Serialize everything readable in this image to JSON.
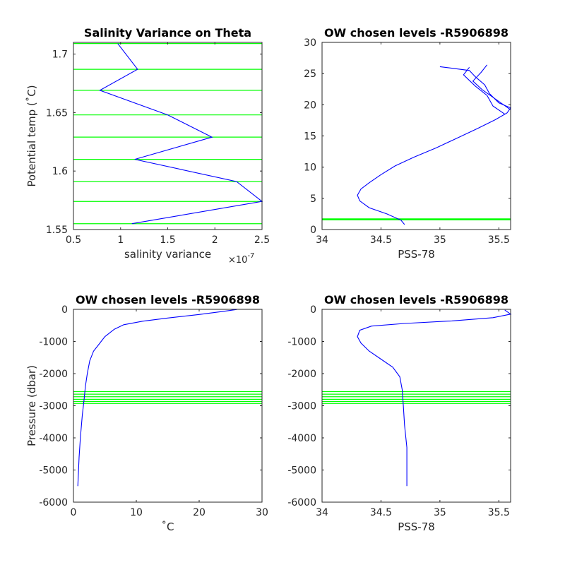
{
  "chart_data": [
    {
      "type": "line",
      "title": "Salinity Variance on Theta",
      "xlabel": "salinity variance",
      "x_exponent": "-7",
      "ylabel": "Potential temp (˚C)",
      "xlim": [
        0.5,
        2.5
      ],
      "ylim": [
        1.55,
        1.71
      ],
      "xticks": [
        0.5,
        1,
        1.5,
        2,
        2.5
      ],
      "xtick_labels": [
        "0.5",
        "1",
        "1.5",
        "2",
        "2.5"
      ],
      "yticks": [
        1.55,
        1.6,
        1.65,
        1.7
      ],
      "ytick_labels": [
        "1.55",
        "1.6",
        "1.65",
        "1.7"
      ],
      "grid": false,
      "series": [
        {
          "color": "#0000ff",
          "points": [
            [
              0.97,
              1.709
            ],
            [
              1.18,
              1.687
            ],
            [
              0.78,
              1.669
            ],
            [
              1.5,
              1.648
            ],
            [
              1.97,
              1.629
            ],
            [
              1.15,
              1.61
            ],
            [
              2.23,
              1.591
            ],
            [
              2.5,
              1.574
            ],
            [
              1.12,
              1.555
            ]
          ]
        }
      ],
      "levels": [
        1.709,
        1.687,
        1.669,
        1.648,
        1.629,
        1.61,
        1.591,
        1.574,
        1.555
      ],
      "levels_color": "#00ff00"
    },
    {
      "type": "line",
      "title": "OW chosen levels -R5906898",
      "xlabel": "PSS-78",
      "ylabel": "",
      "xlim": [
        34,
        35.6
      ],
      "ylim": [
        0,
        30
      ],
      "xticks": [
        34,
        34.5,
        35,
        35.5
      ],
      "xtick_labels": [
        "34",
        "34.5",
        "35",
        "35.5"
      ],
      "yticks": [
        0,
        5,
        10,
        15,
        20,
        25,
        30
      ],
      "ytick_labels": [
        "0",
        "5",
        "10",
        "15",
        "20",
        "25",
        "30"
      ],
      "grid": false,
      "series": [
        {
          "color": "#0000ff",
          "points": [
            [
              34.7,
              0.8
            ],
            [
              34.67,
              1.5
            ],
            [
              34.55,
              2.5
            ],
            [
              34.4,
              3.5
            ],
            [
              34.32,
              4.6
            ],
            [
              34.3,
              5.5
            ],
            [
              34.33,
              6.5
            ],
            [
              34.4,
              7.5
            ],
            [
              34.5,
              8.8
            ],
            [
              34.62,
              10.2
            ],
            [
              34.78,
              11.6
            ],
            [
              34.97,
              13.1
            ],
            [
              35.15,
              14.7
            ],
            [
              35.32,
              16.2
            ],
            [
              35.47,
              17.6
            ],
            [
              35.57,
              18.7
            ],
            [
              35.6,
              19.5
            ],
            [
              35.5,
              20.3
            ],
            [
              35.42,
              21.8
            ],
            [
              35.38,
              23.2
            ],
            [
              35.3,
              24.5
            ],
            [
              35.25,
              25.5
            ],
            [
              35.0,
              26.1
            ]
          ]
        },
        {
          "color": "#0000ff",
          "points": [
            [
              35.55,
              18.5
            ],
            [
              35.45,
              19.8
            ],
            [
              35.4,
              21.5
            ],
            [
              35.3,
              23.0
            ],
            [
              35.2,
              24.8
            ],
            [
              35.25,
              26.0
            ]
          ]
        },
        {
          "color": "#0000ff",
          "points": [
            [
              35.6,
              19.2
            ],
            [
              35.48,
              20.8
            ],
            [
              35.36,
              22.4
            ],
            [
              35.28,
              23.8
            ],
            [
              35.35,
              25.2
            ],
            [
              35.4,
              26.4
            ]
          ]
        }
      ],
      "levels": [
        1.55,
        1.574,
        1.591,
        1.61,
        1.629,
        1.648,
        1.669,
        1.687,
        1.709
      ],
      "levels_color": "#00ff00"
    },
    {
      "type": "line",
      "title": "OW chosen levels -R5906898",
      "xlabel": "˚C",
      "ylabel": "Pressure (dbar)",
      "xlim": [
        0,
        30
      ],
      "ylim": [
        -6000,
        0
      ],
      "xticks": [
        0,
        10,
        20,
        30
      ],
      "xtick_labels": [
        "0",
        "10",
        "20",
        "30"
      ],
      "yticks": [
        0,
        -1000,
        -2000,
        -3000,
        -4000,
        -5000,
        -6000
      ],
      "ytick_labels": [
        "0",
        "-1000",
        "-2000",
        "-3000",
        "-4000",
        "-5000",
        "-6000"
      ],
      "grid": false,
      "series": [
        {
          "color": "#0000ff",
          "points": [
            [
              26.0,
              -5
            ],
            [
              24.0,
              -60
            ],
            [
              20.0,
              -160
            ],
            [
              15.0,
              -270
            ],
            [
              11.0,
              -370
            ],
            [
              8.0,
              -480
            ],
            [
              6.5,
              -620
            ],
            [
              5.0,
              -850
            ],
            [
              4.0,
              -1100
            ],
            [
              3.2,
              -1300
            ],
            [
              2.6,
              -1600
            ],
            [
              2.2,
              -2000
            ],
            [
              1.9,
              -2400
            ],
            [
              1.7,
              -2800
            ],
            [
              1.4,
              -3300
            ],
            [
              1.1,
              -4000
            ],
            [
              0.9,
              -4600
            ],
            [
              0.7,
              -5500
            ]
          ]
        }
      ],
      "levels": [
        -2560,
        -2640,
        -2720,
        -2800,
        -2870,
        -2930
      ],
      "levels_color": "#00ff00"
    },
    {
      "type": "line",
      "title": "OW chosen levels -R5906898",
      "xlabel": "PSS-78",
      "ylabel": "",
      "xlim": [
        34,
        35.6
      ],
      "ylim": [
        -6000,
        0
      ],
      "xticks": [
        34,
        34.5,
        35,
        35.5
      ],
      "xtick_labels": [
        "34",
        "34.5",
        "35",
        "35.5"
      ],
      "yticks": [
        0,
        -1000,
        -2000,
        -3000,
        -4000,
        -5000,
        -6000
      ],
      "ytick_labels": [
        "0",
        "-1000",
        "-2000",
        "-3000",
        "-4000",
        "-5000",
        "-6000"
      ],
      "grid": false,
      "series": [
        {
          "color": "#0000ff",
          "points": [
            [
              35.55,
              -20
            ],
            [
              35.6,
              -150
            ],
            [
              35.45,
              -260
            ],
            [
              35.1,
              -360
            ],
            [
              34.7,
              -440
            ],
            [
              34.42,
              -520
            ],
            [
              34.32,
              -650
            ],
            [
              34.3,
              -850
            ],
            [
              34.33,
              -1050
            ],
            [
              34.4,
              -1300
            ],
            [
              34.5,
              -1550
            ],
            [
              34.6,
              -1800
            ],
            [
              34.66,
              -2100
            ],
            [
              34.68,
              -2500
            ],
            [
              34.69,
              -3000
            ],
            [
              34.7,
              -3600
            ],
            [
              34.72,
              -4300
            ],
            [
              34.72,
              -5500
            ]
          ]
        }
      ],
      "levels": [
        -2560,
        -2640,
        -2720,
        -2800,
        -2870,
        -2930
      ],
      "levels_color": "#00ff00"
    }
  ]
}
